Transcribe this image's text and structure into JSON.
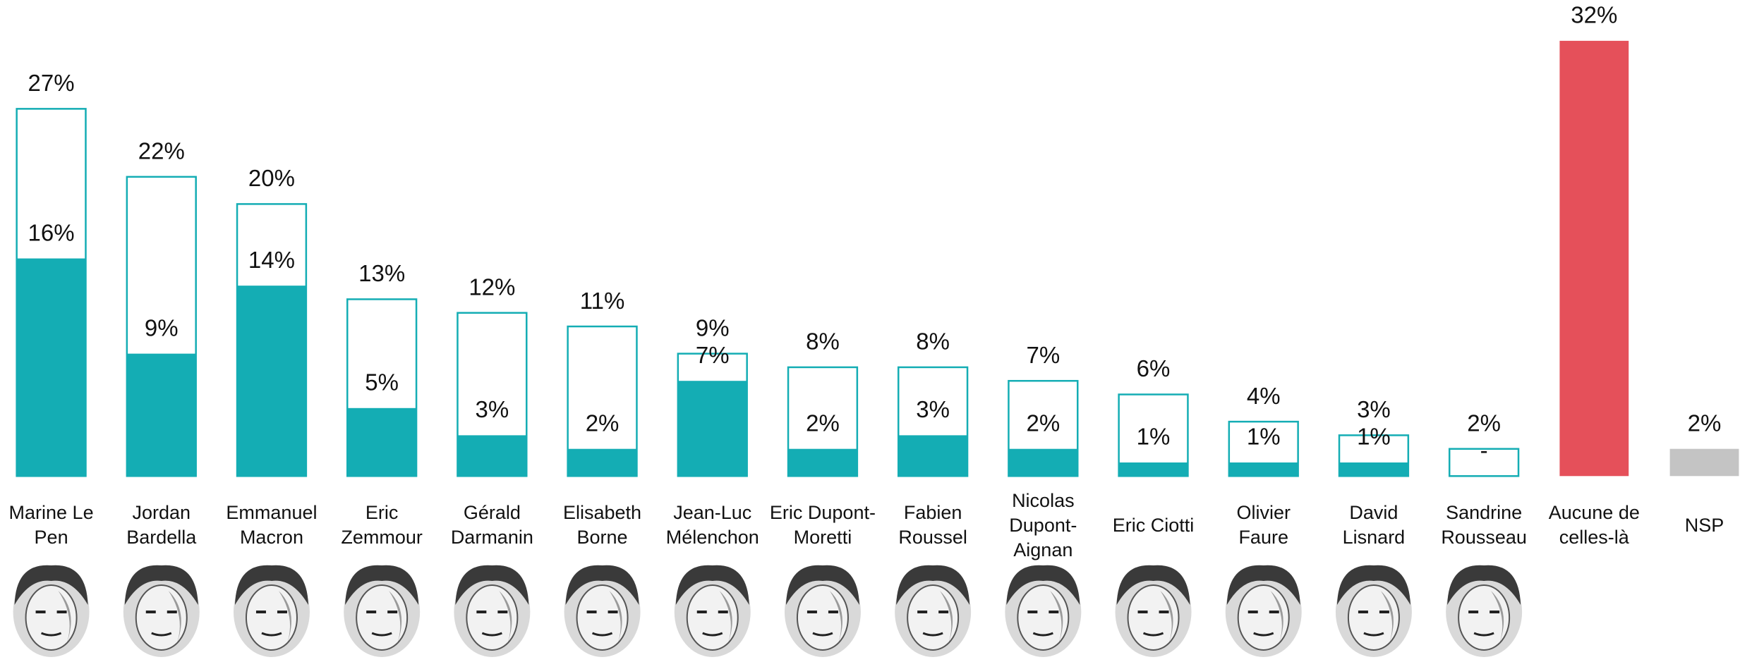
{
  "chart_data": {
    "type": "bar",
    "categories": [
      "Marine Le Pen",
      "Jordan Bardella",
      "Emmanuel Macron",
      "Eric Zemmour",
      "Gérald Darmanin",
      "Elisabeth Borne",
      "Jean-Luc Mélenchon",
      "Eric Dupont-Moretti",
      "Fabien Roussel",
      "Nicolas Dupont-Aignan",
      "Eric Ciotti",
      "Olivier Faure",
      "David Lisnard",
      "Sandrine Rousseau",
      "Aucune de celles-là",
      "NSP"
    ],
    "series": [
      {
        "values": [
          27,
          22,
          20,
          13,
          12,
          11,
          9,
          8,
          8,
          7,
          6,
          4,
          3,
          2,
          32,
          2
        ],
        "value_labels": [
          "27%",
          "22%",
          "20%",
          "13%",
          "12%",
          "11%",
          "9%",
          "8%",
          "8%",
          "7%",
          "6%",
          "4%",
          "3%",
          "2%",
          "32%",
          "2%"
        ],
        "colors": [
          "#14adb4",
          "#14adb4",
          "#14adb4",
          "#14adb4",
          "#14adb4",
          "#14adb4",
          "#14adb4",
          "#14adb4",
          "#14adb4",
          "#14adb4",
          "#14adb4",
          "#14adb4",
          "#14adb4",
          "#14adb4",
          "#e5505a",
          "#c4c4c4"
        ]
      },
      {
        "values": [
          16,
          9,
          14,
          5,
          3,
          2,
          7,
          2,
          3,
          2,
          1,
          1,
          1,
          null,
          null,
          null
        ],
        "value_labels": [
          "16%",
          "9%",
          "14%",
          "5%",
          "3%",
          "2%",
          "7%",
          "2%",
          "3%",
          "2%",
          "1%",
          "1%",
          "1%",
          "-",
          null,
          null
        ],
        "color": "#14adb4"
      }
    ],
    "ylim": [
      0,
      35
    ]
  }
}
